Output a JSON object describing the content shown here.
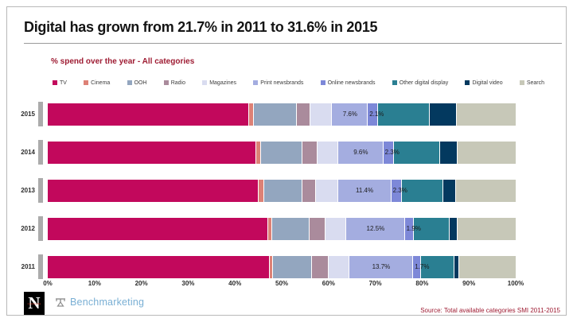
{
  "title": "Digital has grown from 21.7% in 2011 to 31.6% in 2015",
  "subtitle": "% spend over the year - All categories",
  "legend": [
    {
      "label": "TV",
      "color": "#C2085C"
    },
    {
      "label": "Cinema",
      "color": "#DD8176"
    },
    {
      "label": "OOH",
      "color": "#93A6BF"
    },
    {
      "label": "Radio",
      "color": "#AA8B9C"
    },
    {
      "label": "Magazines",
      "color": "#D9DCF0"
    },
    {
      "label": "Print newsbrands",
      "color": "#A4ADE0"
    },
    {
      "label": "Online newsbrands",
      "color": "#7D88D8"
    },
    {
      "label": "Other digital display",
      "color": "#2A7F92"
    },
    {
      "label": "Digital video",
      "color": "#03395F"
    },
    {
      "label": "Search",
      "color": "#C7C8B8"
    }
  ],
  "chart_data": {
    "type": "bar",
    "stacked": true,
    "orientation": "horizontal",
    "unit": "%",
    "title": "Digital has grown from 21.7% in 2011 to 31.6% in 2015",
    "subtitle": "% spend over the year - All categories",
    "legend_position": "top",
    "xlim": [
      0,
      100
    ],
    "x_ticks": [
      "0%",
      "10%",
      "20%",
      "30%",
      "40%",
      "50%",
      "60%",
      "70%",
      "80%",
      "90%",
      "100%"
    ],
    "series_names": [
      "TV",
      "Cinema",
      "OOH",
      "Radio",
      "Magazines",
      "Print newsbrands",
      "Online newsbrands",
      "Other digital display",
      "Digital video",
      "Search"
    ],
    "colors": [
      "#C2085C",
      "#DD8176",
      "#93A6BF",
      "#AA8B9C",
      "#D9DCF0",
      "#A4ADE0",
      "#7D88D8",
      "#2A7F92",
      "#03395F",
      "#C7C8B8"
    ],
    "rows": [
      {
        "year": "2015",
        "values": [
          43.0,
          1.0,
          9.2,
          3.0,
          4.6,
          7.6,
          2.1,
          11.2,
          5.8,
          12.5
        ],
        "labels": [
          {
            "series": "Print newsbrands",
            "index": 5,
            "text": "7.6%",
            "align": "center"
          },
          {
            "series": "Online newsbrands",
            "index": 6,
            "text": "2.1%",
            "align": "start"
          }
        ]
      },
      {
        "year": "2014",
        "values": [
          44.5,
          1.0,
          9.0,
          3.2,
          4.4,
          9.6,
          2.3,
          9.9,
          3.7,
          12.4
        ],
        "labels": [
          {
            "series": "Print newsbrands",
            "index": 5,
            "text": "9.6%",
            "align": "center"
          },
          {
            "series": "Online newsbrands",
            "index": 6,
            "text": "2.3%",
            "align": "start"
          }
        ]
      },
      {
        "year": "2013",
        "values": [
          45.1,
          1.1,
          8.2,
          2.9,
          4.7,
          11.4,
          2.3,
          8.8,
          2.7,
          12.8
        ],
        "labels": [
          {
            "series": "Print newsbrands",
            "index": 5,
            "text": "11.4%",
            "align": "center"
          },
          {
            "series": "Online newsbrands",
            "index": 6,
            "text": "2.3%",
            "align": "start"
          }
        ]
      },
      {
        "year": "2012",
        "values": [
          47.1,
          0.9,
          7.9,
          3.4,
          4.5,
          12.5,
          1.9,
          7.7,
          1.7,
          12.4
        ],
        "labels": [
          {
            "series": "Print newsbrands",
            "index": 5,
            "text": "12.5%",
            "align": "center"
          },
          {
            "series": "Online newsbrands",
            "index": 6,
            "text": "1.9%",
            "align": "start"
          }
        ]
      },
      {
        "year": "2011",
        "values": [
          47.4,
          0.8,
          8.2,
          3.7,
          4.3,
          13.7,
          1.7,
          7.1,
          1.1,
          12.0
        ],
        "labels": [
          {
            "series": "Print newsbrands",
            "index": 5,
            "text": "13.7%",
            "align": "center"
          },
          {
            "series": "Online newsbrands",
            "index": 6,
            "text": "1.7%",
            "align": "start"
          }
        ]
      }
    ]
  },
  "footer": {
    "newsworks_letter": "N",
    "newsworks_sub": "newsworks",
    "benchmarketing": "Benchmarketing"
  },
  "source": "Source: Total available categories SMI 2011-2015"
}
